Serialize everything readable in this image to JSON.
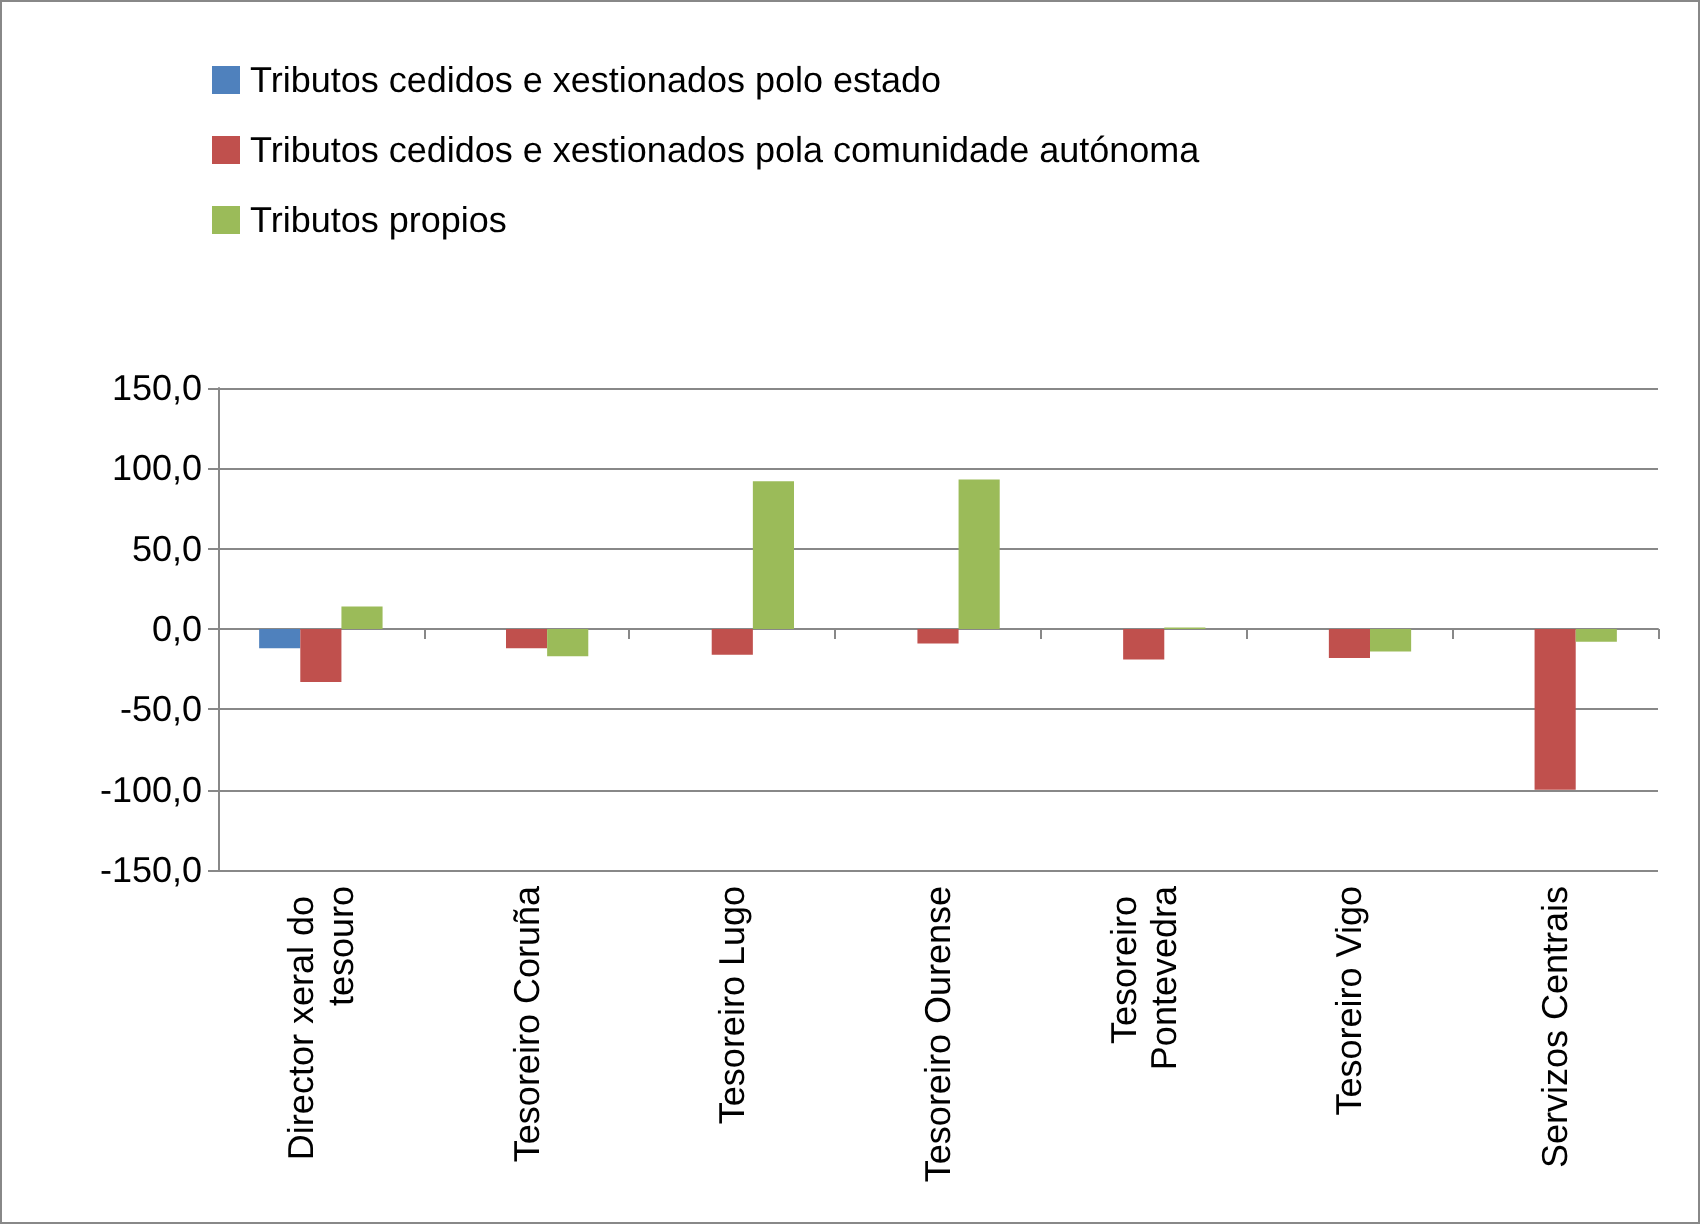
{
  "chart_data": {
    "type": "bar",
    "categories": [
      "Director xeral do tesouro",
      "Tesoreiro Coruña",
      "Tesoreiro Lugo",
      "Tesoreiro Ourense",
      "Tesoreiro Pontevedra",
      "Tesoreiro Vigo",
      "Servizos Centrais"
    ],
    "series": [
      {
        "name": "Tributos cedidos e xestionados polo estado",
        "color": "#4f81bd",
        "values": [
          -12,
          null,
          null,
          null,
          null,
          null,
          null
        ]
      },
      {
        "name": "Tributos cedidos e xestionados pola comunidade autónoma",
        "color": "#c0504d",
        "values": [
          -33,
          -12,
          -16,
          -9,
          -19,
          -18,
          -100
        ]
      },
      {
        "name": "Tributos propios",
        "color": "#9bbb59",
        "values": [
          14,
          -17,
          92,
          93,
          1,
          -14,
          -8
        ]
      }
    ],
    "ylim": [
      -150,
      150
    ],
    "yticks": [
      {
        "value": -150,
        "label": "-150,0"
      },
      {
        "value": -100,
        "label": "-100,0"
      },
      {
        "value": -50,
        "label": "-50,0"
      },
      {
        "value": 0,
        "label": "0,0"
      },
      {
        "value": 50,
        "label": "50,0"
      },
      {
        "value": 100,
        "label": "100,0"
      },
      {
        "value": 150,
        "label": "150,0"
      }
    ],
    "grid": "y",
    "legend": "top left"
  }
}
